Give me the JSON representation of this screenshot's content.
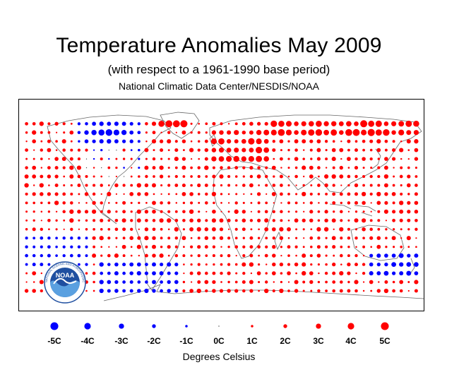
{
  "header": {
    "title": "Temperature Anomalies May 2009",
    "subtitle": "(with respect to a 1961-1990 base period)",
    "source": "National Climatic Data Center/NESDIS/NOAA"
  },
  "logo": {
    "name": "NOAA",
    "ring_text": "NATIONAL OCEANIC AND ATMOSPHERIC ADMINISTRATION · U.S. DEPARTMENT OF COMMERCE"
  },
  "colors": {
    "warm": "#ff0000",
    "cold": "#0000ff",
    "coastline": "#666666",
    "logo_blue": "#1f4fa0"
  },
  "legend": {
    "title": "Degrees Celsius",
    "items": [
      {
        "label": "-5C",
        "value": -5
      },
      {
        "label": "-4C",
        "value": -4
      },
      {
        "label": "-3C",
        "value": -3
      },
      {
        "label": "-2C",
        "value": -2
      },
      {
        "label": "-1C",
        "value": -1
      },
      {
        "label": "0C",
        "value": 0
      },
      {
        "label": "1C",
        "value": 1
      },
      {
        "label": "2C",
        "value": 2
      },
      {
        "label": "3C",
        "value": 3
      },
      {
        "label": "4C",
        "value": 4
      },
      {
        "label": "5C",
        "value": 5
      }
    ]
  },
  "map": {
    "projection": "equirectangular",
    "grid_resolution_degrees": 10,
    "anomaly_pattern": {
      "strong_cold_regions": [
        "northern Canada",
        "Hudson Bay",
        "Alaska interior"
      ],
      "moderate_cold_regions": [
        "Southern Ocean near Australia",
        "southern South America",
        "Pacific south of equator"
      ],
      "strong_warm_regions": [
        "Greenland",
        "Europe",
        "Russia",
        "Siberia",
        "Arctic Ocean north of Asia"
      ],
      "moderate_warm_regions": [
        "tropical oceans",
        "Africa",
        "Atlantic"
      ]
    }
  }
}
